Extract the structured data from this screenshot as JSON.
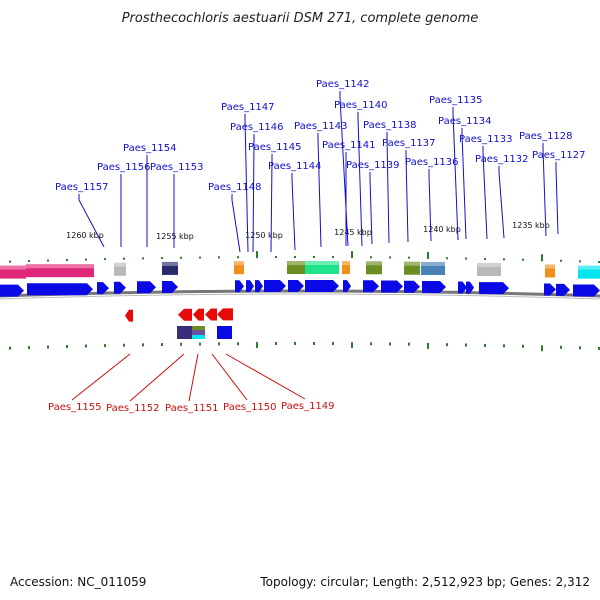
{
  "title": "Prosthecochloris aestuarii DSM 271, complete genome",
  "accession": "Accession: NC_011059",
  "summary": "Topology: circular; Length: 2,512,923 bp; Genes: 2,312",
  "scale_labels": [
    "1260 kbp",
    "1255 kbp",
    "1250 kbp",
    "1245 kbp",
    "1240 kbp",
    "1235 kbp"
  ],
  "forward_gene_labels": [
    "Paes_1157",
    "Paes_1156",
    "Paes_1154",
    "Paes_1153",
    "Paes_1148",
    "Paes_1147",
    "Paes_1146",
    "Paes_1145",
    "Paes_1144",
    "Paes_1143",
    "Paes_1142",
    "Paes_1141",
    "Paes_1140",
    "Paes_1139",
    "Paes_1138",
    "Paes_1137",
    "Paes_1136",
    "Paes_1135",
    "Paes_1134",
    "Paes_1133",
    "Paes_1132",
    "Paes_1128",
    "Paes_1127"
  ],
  "reverse_gene_labels": [
    "Paes_1155",
    "Paes_1152",
    "Paes_1151",
    "Paes_1150",
    "Paes_1149"
  ],
  "colors": {
    "forward_gene": "#0a0ae6",
    "reverse_gene": "#e60a0a",
    "forward_label": "#1010c8",
    "reverse_label": "#c81010",
    "backbone": "#888888",
    "tick": "#2e7d2e",
    "cog_magenta": "#e0287a",
    "cog_gray": "#b8b8b8",
    "cog_navy": "#2a2a6e",
    "cog_orange": "#f0901a",
    "cog_olive": "#6b8e23",
    "cog_spring": "#1ee38a",
    "cog_steel": "#4682b4",
    "cog_cyan": "#00e5ee"
  }
}
